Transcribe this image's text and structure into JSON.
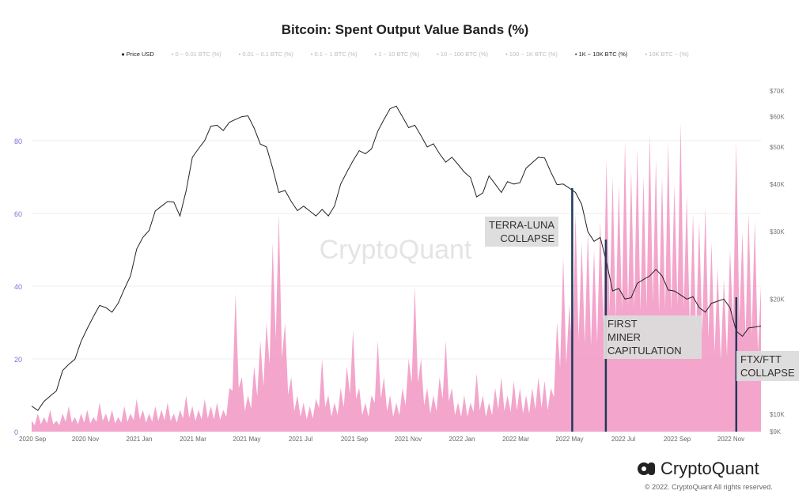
{
  "title": "Bitcoin: Spent Output Value Bands (%)",
  "legend": [
    "Price USD",
    "0 ~ 0.01 BTC (%)",
    "0.01 ~ 0.1 BTC (%)",
    "0.1 ~ 1 BTC (%)",
    "1 ~ 10 BTC (%)",
    "10 ~ 100 BTC (%)",
    "100 ~ 1K BTC (%)",
    "1K ~ 10K BTC (%)",
    "10K BTC ~ (%)"
  ],
  "legend_active": [
    0,
    7
  ],
  "watermark": "CryptoQuant",
  "logo": "CryptoQuant",
  "copyright": "© 2022. CryptoQuant All rights reserved.",
  "annotations": {
    "terra": [
      "TERRA-LUNA",
      "COLLAPSE"
    ],
    "miner": [
      "FIRST",
      "MINER",
      "CAPITULATION"
    ],
    "ftx": [
      "FTX/FTT",
      "COLLAPSE"
    ]
  },
  "colors": {
    "band": "#f29bc5",
    "price": "#222222",
    "event_line": "#1f3a5a",
    "left_axis": "#7b6fd6"
  },
  "chart_data": {
    "type": "area",
    "title": "Bitcoin: Spent Output Value Bands (%)",
    "x_ticks": [
      "2020 Sep",
      "2020 Nov",
      "2021 Jan",
      "2021 Mar",
      "2021 May",
      "2021 Jul",
      "2021 Sep",
      "2021 Nov",
      "2022 Jan",
      "2022 Mar",
      "2022 May",
      "2022 Jul",
      "2022 Sep",
      "2022 Nov"
    ],
    "y_left_ticks": [
      0,
      20,
      40,
      60,
      80
    ],
    "y_left_range": [
      0,
      97
    ],
    "y_right_ticks": [
      {
        "v": 9000,
        "l": "$9K"
      },
      {
        "v": 10000,
        "l": "$10K"
      },
      {
        "v": 20000,
        "l": "$20K"
      },
      {
        "v": 30000,
        "l": "$30K"
      },
      {
        "v": 40000,
        "l": "$40K"
      },
      {
        "v": 50000,
        "l": "$50K"
      },
      {
        "v": 60000,
        "l": "$60K"
      },
      {
        "v": 70000,
        "l": "$70K"
      }
    ],
    "y_right_range": [
      9000,
      70000
    ],
    "y_right_scale": "log",
    "x_range_months": [
      0,
      27.2
    ],
    "band_series": {
      "name": "1K ~ 10K BTC (%)",
      "step": "weekly",
      "values": [
        3,
        5,
        4,
        6,
        3,
        5,
        7,
        4,
        5,
        6,
        4,
        8,
        5,
        6,
        4,
        7,
        5,
        9,
        6,
        5,
        7,
        6,
        8,
        5,
        6,
        10,
        7,
        6,
        9,
        7,
        8,
        6,
        12,
        38,
        15,
        10,
        18,
        25,
        30,
        52,
        60,
        30,
        15,
        10,
        8,
        7,
        9,
        20,
        10,
        8,
        12,
        18,
        28,
        12,
        8,
        10,
        25,
        15,
        10,
        8,
        12,
        20,
        40,
        20,
        12,
        10,
        15,
        25,
        12,
        8,
        10,
        8,
        16,
        10,
        8,
        12,
        15,
        10,
        14,
        12,
        10,
        12,
        15,
        14,
        12,
        30,
        48,
        35,
        60,
        52,
        55,
        50,
        58,
        75,
        70,
        68,
        80,
        72,
        78,
        70,
        82,
        75,
        70,
        80,
        68,
        85,
        65,
        60,
        58,
        62,
        52,
        45,
        42,
        50,
        80,
        55,
        60,
        58,
        40
      ]
    },
    "price_series": {
      "name": "Price USD",
      "step": "biweekly",
      "values_k": [
        10.5,
        10.8,
        11.5,
        13.5,
        15.5,
        18,
        19,
        19.5,
        23,
        29,
        34,
        36,
        33,
        47,
        52,
        57,
        58,
        60,
        56,
        50,
        38,
        36,
        35,
        33,
        33,
        40,
        46,
        48,
        55,
        63,
        60,
        57,
        50,
        48,
        47,
        43,
        37,
        42,
        38,
        40,
        44,
        47,
        43,
        40,
        38,
        30,
        29,
        21,
        20,
        22,
        23,
        23,
        21,
        20,
        19,
        19.5,
        20,
        16.5,
        16.8,
        17
      ]
    },
    "events": [
      {
        "label": "TERRA-LUNA COLLAPSE",
        "month": 20.1
      },
      {
        "label": "FIRST MINER CAPITULATION",
        "month": 21.35
      },
      {
        "label": "FTX/FTT COLLAPSE",
        "month": 26.2
      }
    ]
  }
}
